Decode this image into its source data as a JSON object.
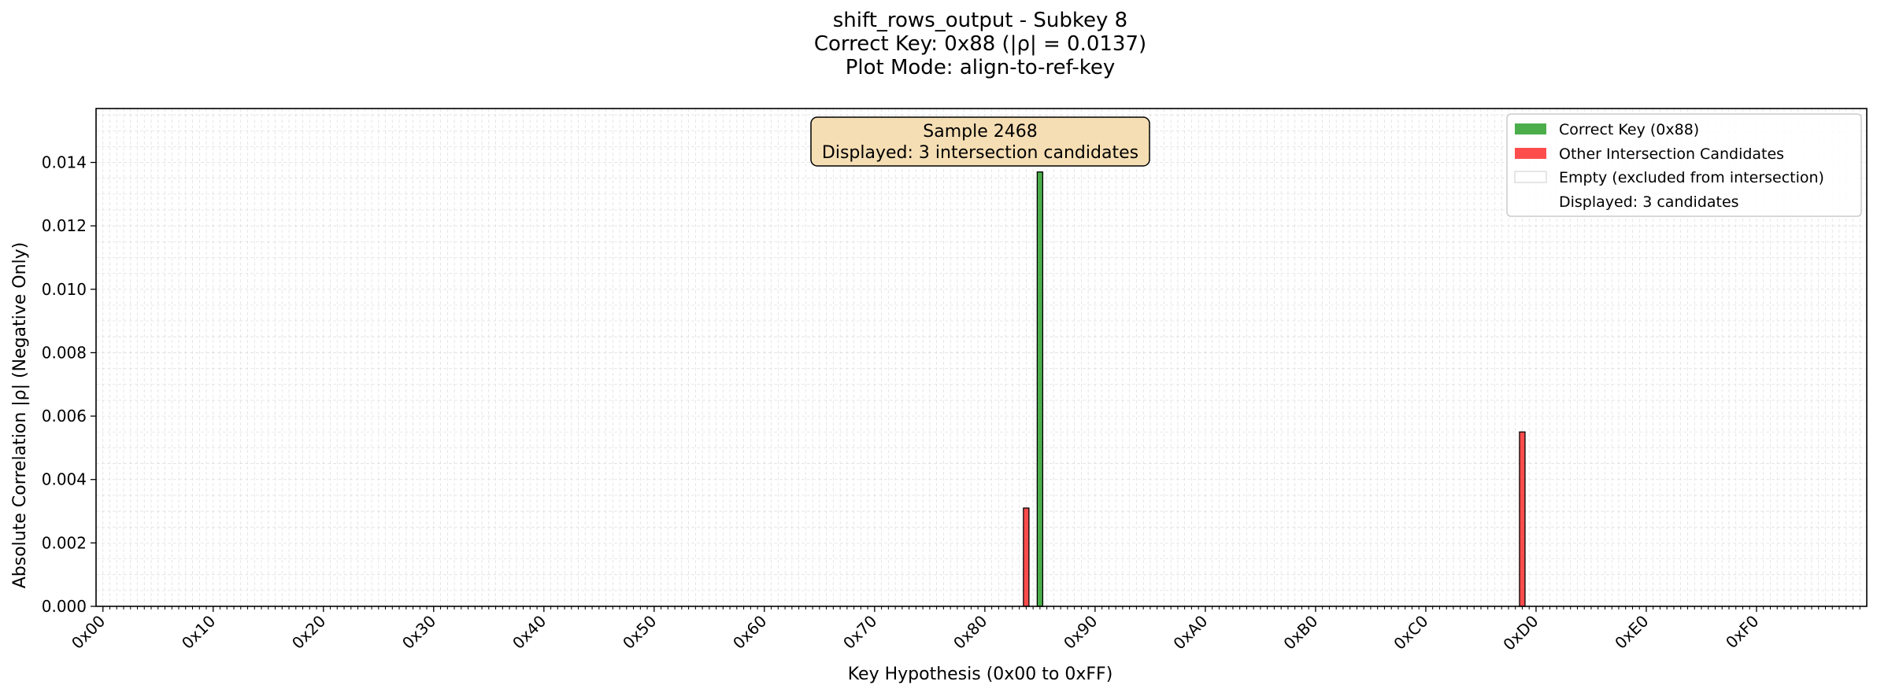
{
  "chart_data": {
    "type": "bar",
    "title_lines": [
      "shift_rows_output - Subkey 8",
      "Correct Key: 0x88 (|ρ| = 0.0137)",
      "Plot Mode: align-to-ref-key"
    ],
    "xlabel": "Key Hypothesis (0x00 to 0xFF)",
    "ylabel": "Absolute Correlation |ρ| (Negative Only)",
    "xlim": [
      -1,
      256
    ],
    "ylim": [
      0,
      0.0157
    ],
    "x_tick_labels": [
      "0x00",
      "0x10",
      "0x20",
      "0x30",
      "0x40",
      "0x50",
      "0x60",
      "0x70",
      "0x80",
      "0x90",
      "0xA0",
      "0xB0",
      "0xC0",
      "0xD0",
      "0xE0",
      "0xF0"
    ],
    "y_tick_values": [
      0.0,
      0.002,
      0.004,
      0.006,
      0.008,
      0.01,
      0.012,
      0.014
    ],
    "y_tick_labels": [
      "0.000",
      "0.002",
      "0.004",
      "0.006",
      "0.008",
      "0.010",
      "0.012",
      "0.014"
    ],
    "grid": true,
    "bars": [
      {
        "key": 134,
        "key_label": "0x86",
        "value": 0.0031,
        "series": "other"
      },
      {
        "key": 136,
        "key_label": "0x88",
        "value": 0.0137,
        "series": "correct"
      },
      {
        "key": 206,
        "key_label": "0xCE",
        "value": 0.0055,
        "series": "other"
      }
    ],
    "annotation": {
      "lines": [
        "Sample 2468",
        "Displayed: 3 intersection candidates"
      ],
      "background": "#f5deb3"
    },
    "legend": {
      "placement": "top-right",
      "entries": [
        {
          "id": "correct",
          "label": "Correct Key (0x88)",
          "color": "#2ca02c"
        },
        {
          "id": "other",
          "label": "Other Intersection Candidates",
          "color": "#ff2020"
        },
        {
          "id": "empty",
          "label": "Empty (excluded from intersection)",
          "color": "#ffffff"
        },
        {
          "id": "note",
          "label": "Displayed: 3 candidates",
          "color": "none"
        }
      ]
    },
    "colors": {
      "correct": "#2ca02c",
      "other": "#ff2020",
      "edge": "#000000",
      "grid": "#d3d3d3"
    }
  }
}
